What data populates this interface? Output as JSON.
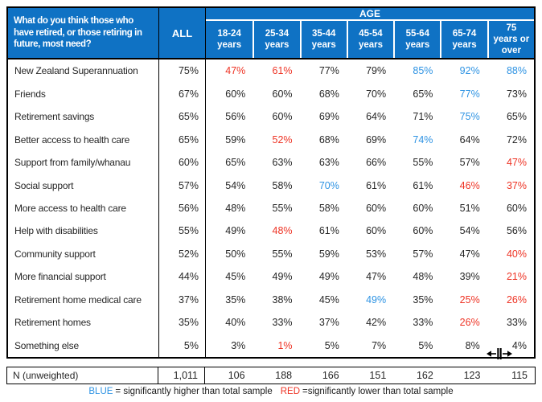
{
  "colors": {
    "header_bg": "#0F72C4",
    "blue": "#2E93E3",
    "red": "#EE3324"
  },
  "table": {
    "question": "What do you think those who\nhave retired, or those retiring in\nfuture, most need?",
    "all_header": "ALL",
    "age_header": "AGE",
    "age_columns": [
      "18-24\nyears",
      "25-34\nyears",
      "35-44\nyears",
      "45-54\nyears",
      "55-64\nyears",
      "65-74\nyears",
      "75\nyears or\nover"
    ],
    "rows": [
      {
        "label": "New Zealand Superannuation",
        "all": "75%",
        "cells": [
          {
            "v": "47%",
            "c": "red"
          },
          {
            "v": "61%",
            "c": "red"
          },
          {
            "v": "77%",
            "c": ""
          },
          {
            "v": "79%",
            "c": ""
          },
          {
            "v": "85%",
            "c": "blue"
          },
          {
            "v": "92%",
            "c": "blue"
          },
          {
            "v": "88%",
            "c": "blue"
          }
        ]
      },
      {
        "label": "Friends",
        "all": "67%",
        "cells": [
          {
            "v": "60%",
            "c": ""
          },
          {
            "v": "60%",
            "c": ""
          },
          {
            "v": "68%",
            "c": ""
          },
          {
            "v": "70%",
            "c": ""
          },
          {
            "v": "65%",
            "c": ""
          },
          {
            "v": "77%",
            "c": "blue"
          },
          {
            "v": "73%",
            "c": ""
          }
        ]
      },
      {
        "label": "Retirement savings",
        "all": "65%",
        "cells": [
          {
            "v": "56%",
            "c": ""
          },
          {
            "v": "60%",
            "c": ""
          },
          {
            "v": "69%",
            "c": ""
          },
          {
            "v": "64%",
            "c": ""
          },
          {
            "v": "71%",
            "c": ""
          },
          {
            "v": "75%",
            "c": "blue"
          },
          {
            "v": "65%",
            "c": ""
          }
        ]
      },
      {
        "label": "Better access to health care",
        "all": "65%",
        "cells": [
          {
            "v": "59%",
            "c": ""
          },
          {
            "v": "52%",
            "c": "red"
          },
          {
            "v": "68%",
            "c": ""
          },
          {
            "v": "69%",
            "c": ""
          },
          {
            "v": "74%",
            "c": "blue"
          },
          {
            "v": "64%",
            "c": ""
          },
          {
            "v": "72%",
            "c": ""
          }
        ]
      },
      {
        "label": "Support from family/whanau",
        "all": "60%",
        "cells": [
          {
            "v": "65%",
            "c": ""
          },
          {
            "v": "63%",
            "c": ""
          },
          {
            "v": "63%",
            "c": ""
          },
          {
            "v": "66%",
            "c": ""
          },
          {
            "v": "55%",
            "c": ""
          },
          {
            "v": "57%",
            "c": ""
          },
          {
            "v": "47%",
            "c": "red"
          }
        ]
      },
      {
        "label": "Social support",
        "all": "57%",
        "cells": [
          {
            "v": "54%",
            "c": ""
          },
          {
            "v": "58%",
            "c": ""
          },
          {
            "v": "70%",
            "c": "blue"
          },
          {
            "v": "61%",
            "c": ""
          },
          {
            "v": "61%",
            "c": ""
          },
          {
            "v": "46%",
            "c": "red"
          },
          {
            "v": "37%",
            "c": "red"
          }
        ]
      },
      {
        "label": "More access to health care",
        "all": "56%",
        "cells": [
          {
            "v": "48%",
            "c": ""
          },
          {
            "v": "55%",
            "c": ""
          },
          {
            "v": "58%",
            "c": ""
          },
          {
            "v": "60%",
            "c": ""
          },
          {
            "v": "60%",
            "c": ""
          },
          {
            "v": "51%",
            "c": ""
          },
          {
            "v": "60%",
            "c": ""
          }
        ]
      },
      {
        "label": "Help with disabilities",
        "all": "55%",
        "cells": [
          {
            "v": "49%",
            "c": ""
          },
          {
            "v": "48%",
            "c": "red"
          },
          {
            "v": "61%",
            "c": ""
          },
          {
            "v": "60%",
            "c": ""
          },
          {
            "v": "60%",
            "c": ""
          },
          {
            "v": "54%",
            "c": ""
          },
          {
            "v": "56%",
            "c": ""
          }
        ]
      },
      {
        "label": "Community support",
        "all": "52%",
        "cells": [
          {
            "v": "50%",
            "c": ""
          },
          {
            "v": "55%",
            "c": ""
          },
          {
            "v": "59%",
            "c": ""
          },
          {
            "v": "53%",
            "c": ""
          },
          {
            "v": "57%",
            "c": ""
          },
          {
            "v": "47%",
            "c": ""
          },
          {
            "v": "40%",
            "c": "red"
          }
        ]
      },
      {
        "label": "More financial support",
        "all": "44%",
        "cells": [
          {
            "v": "45%",
            "c": ""
          },
          {
            "v": "49%",
            "c": ""
          },
          {
            "v": "49%",
            "c": ""
          },
          {
            "v": "47%",
            "c": ""
          },
          {
            "v": "48%",
            "c": ""
          },
          {
            "v": "39%",
            "c": ""
          },
          {
            "v": "21%",
            "c": "red"
          }
        ]
      },
      {
        "label": "Retirement home medical care",
        "all": "37%",
        "cells": [
          {
            "v": "35%",
            "c": ""
          },
          {
            "v": "38%",
            "c": ""
          },
          {
            "v": "45%",
            "c": ""
          },
          {
            "v": "49%",
            "c": "blue"
          },
          {
            "v": "35%",
            "c": ""
          },
          {
            "v": "25%",
            "c": "red"
          },
          {
            "v": "26%",
            "c": "red"
          }
        ]
      },
      {
        "label": "Retirement homes",
        "all": "35%",
        "cells": [
          {
            "v": "40%",
            "c": ""
          },
          {
            "v": "33%",
            "c": ""
          },
          {
            "v": "37%",
            "c": ""
          },
          {
            "v": "42%",
            "c": ""
          },
          {
            "v": "33%",
            "c": ""
          },
          {
            "v": "26%",
            "c": "red"
          },
          {
            "v": "33%",
            "c": ""
          }
        ]
      },
      {
        "label": "Something else",
        "all": "5%",
        "cells": [
          {
            "v": "3%",
            "c": ""
          },
          {
            "v": "1%",
            "c": "red"
          },
          {
            "v": "5%",
            "c": ""
          },
          {
            "v": "7%",
            "c": ""
          },
          {
            "v": "5%",
            "c": ""
          },
          {
            "v": "8%",
            "c": ""
          },
          {
            "v": "4%",
            "c": ""
          }
        ]
      }
    ],
    "n_row": {
      "label": "N (unweighted)",
      "all": "1,011",
      "values": [
        "106",
        "188",
        "166",
        "151",
        "162",
        "123",
        "115"
      ]
    }
  },
  "legend": {
    "blue_word": "BLUE",
    "blue_rest": "= significantly higher than total sample",
    "red_word": "RED",
    "red_rest": "=significantly lower than total sample"
  },
  "icons": {
    "cursor": "column-resize-cursor"
  }
}
